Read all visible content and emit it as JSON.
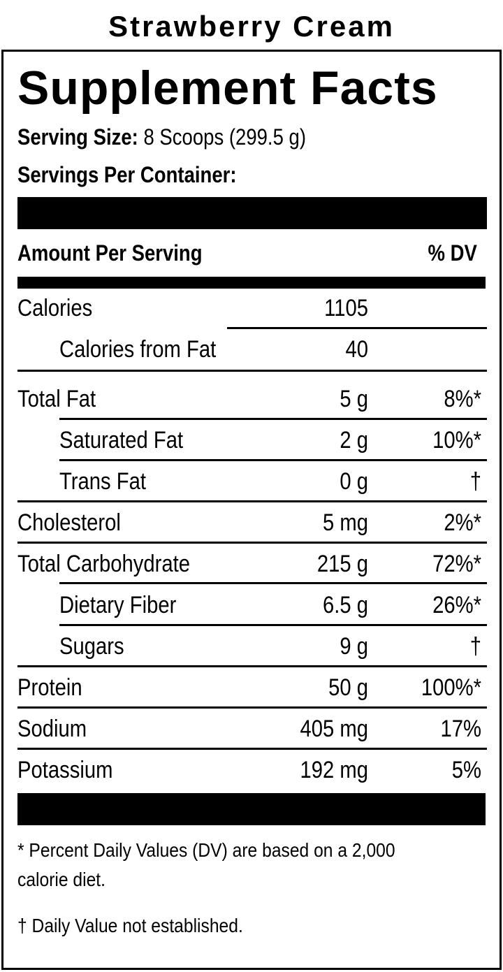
{
  "flavor": "Strawberry Cream",
  "label": {
    "title": "Supplement Facts",
    "serving_size_label": "Serving Size:",
    "serving_size_value": " 8 Scoops (299.5 g)",
    "servings_per_container_label": "Servings Per Container:",
    "servings_per_container_value": "",
    "header_amount": "Amount Per Serving",
    "header_dv": "% DV",
    "rows": [
      {
        "label": "Calories",
        "amount": "1105",
        "dv": ""
      },
      {
        "label": "Calories from Fat",
        "amount": "40",
        "dv": ""
      },
      {
        "label": "Total Fat",
        "amount": "5 g",
        "dv": "8%*"
      },
      {
        "label": "Saturated Fat",
        "amount": "2 g",
        "dv": "10%*"
      },
      {
        "label": "Trans Fat",
        "amount": "0 g",
        "dv": "†"
      },
      {
        "label": "Cholesterol",
        "amount": "5 mg",
        "dv": "2%*"
      },
      {
        "label": "Total Carbohydrate",
        "amount": "215 g",
        "dv": "72%*"
      },
      {
        "label": "Dietary Fiber",
        "amount": "6.5 g",
        "dv": "26%*"
      },
      {
        "label": "Sugars",
        "amount": "9 g",
        "dv": "†"
      },
      {
        "label": "Protein",
        "amount": "50 g",
        "dv": "100%*"
      },
      {
        "label": "Sodium",
        "amount": "405 mg",
        "dv": "17%"
      },
      {
        "label": "Potassium",
        "amount": "192 mg",
        "dv": "5%"
      }
    ],
    "footnote_dv_line1": "* Percent Daily Values (DV) are based on a 2,000",
    "footnote_dv_line2": "calorie diet.",
    "footnote_dagger": "† Daily Value not established."
  }
}
